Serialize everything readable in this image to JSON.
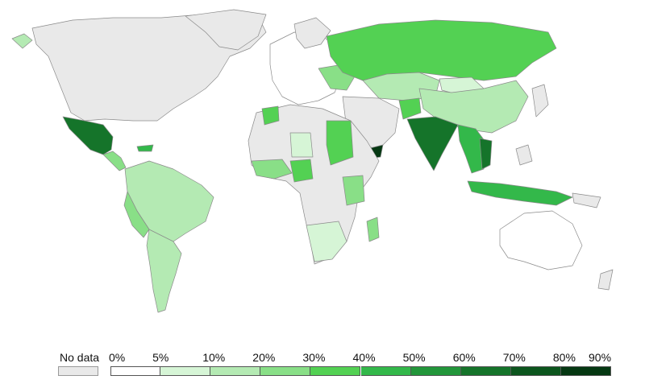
{
  "legend": {
    "no_data_label": "No data",
    "no_data_color": "#e9e9e9",
    "bins": [
      {
        "range": [
          0,
          5
        ],
        "color": "#ffffff"
      },
      {
        "range": [
          5,
          10
        ],
        "color": "#d6f5d6"
      },
      {
        "range": [
          10,
          20
        ],
        "color": "#b4eab3"
      },
      {
        "range": [
          20,
          30
        ],
        "color": "#89df87"
      },
      {
        "range": [
          30,
          40
        ],
        "color": "#53d153"
      },
      {
        "range": [
          40,
          50
        ],
        "color": "#33b84a"
      },
      {
        "range": [
          50,
          60
        ],
        "color": "#22963a"
      },
      {
        "range": [
          60,
          70
        ],
        "color": "#15742a"
      },
      {
        "range": [
          70,
          80
        ],
        "color": "#0c561e"
      },
      {
        "range": [
          80,
          90
        ],
        "color": "#053812"
      }
    ],
    "tick_labels": [
      "0%",
      "5%",
      "10%",
      "20%",
      "30%",
      "40%",
      "50%",
      "60%",
      "70%",
      "80%",
      "90%"
    ]
  },
  "map_colors": {
    "border": "#8a8a8a",
    "ocean": "#ffffff"
  }
}
